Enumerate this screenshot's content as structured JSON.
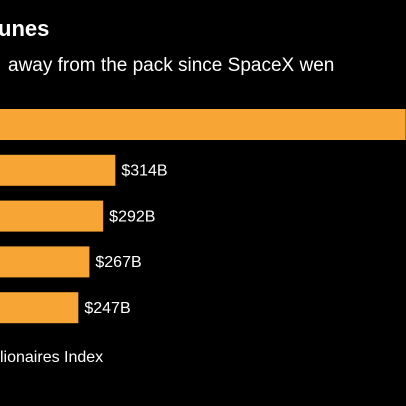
{
  "chart_data": {
    "type": "barh",
    "title": "unes",
    "subtitle": "away from the pack since SpaceX wen",
    "source": "lionaires Index",
    "categories": [
      null,
      null,
      null,
      null,
      null
    ],
    "values": [
      840,
      314,
      292,
      267,
      247
    ],
    "value_labels": [
      null,
      "$314B",
      "$292B",
      "$267B",
      "$247B"
    ],
    "color": "#f7a534"
  }
}
